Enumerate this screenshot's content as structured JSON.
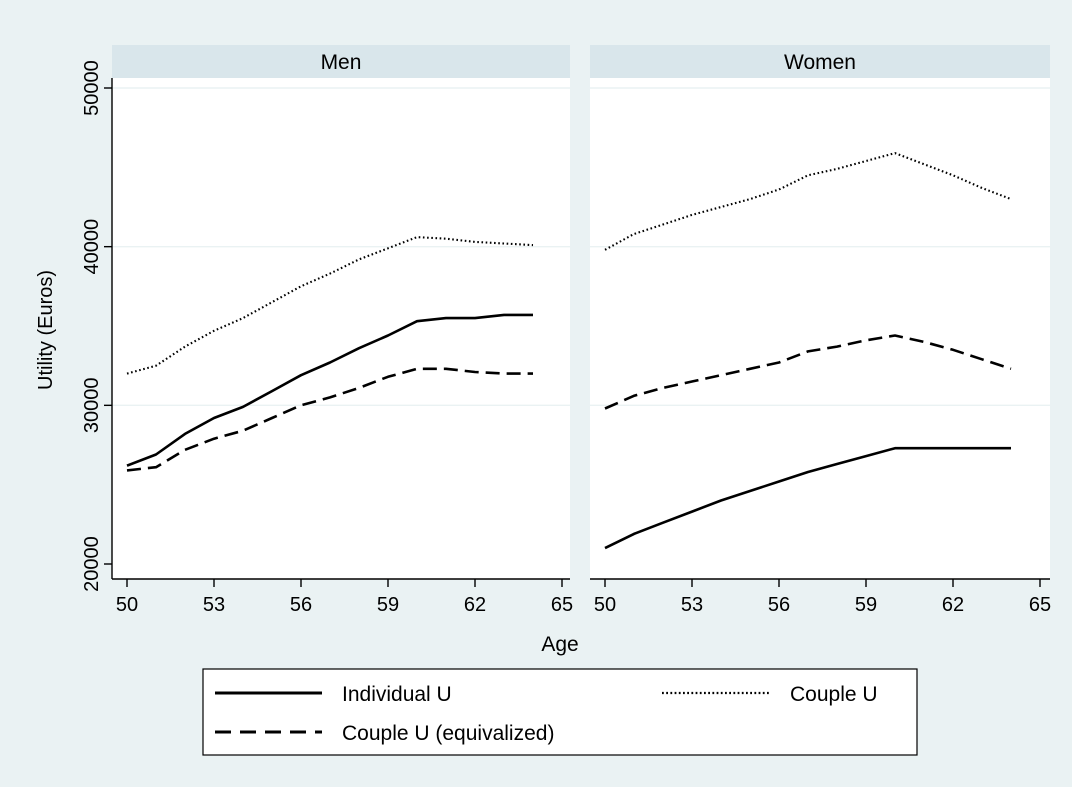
{
  "colors": {
    "outer_background": "#eaf2f3",
    "panel_header": "#d9e6eb",
    "plot_background": "#ffffff",
    "gridline": "#eaf2f3",
    "series_color": "#000000"
  },
  "chart_data": {
    "type": "line",
    "xlabel": "Age",
    "ylabel": "Utility (Euros)",
    "xlim": [
      50,
      65
    ],
    "ylim": [
      20000,
      50000
    ],
    "xticks": [
      "50",
      "53",
      "56",
      "59",
      "62",
      "65"
    ],
    "yticks": [
      "20000",
      "30000",
      "40000",
      "50000"
    ],
    "grid": true,
    "legend_position": "bottom",
    "legend": [
      {
        "label": "Individual U",
        "style": "solid"
      },
      {
        "label": "Couple U",
        "style": "dotted"
      },
      {
        "label": "Couple U (equivalized)",
        "style": "dashed"
      }
    ],
    "panels": [
      {
        "title": "Men",
        "series": [
          {
            "name": "Individual U",
            "style": "solid",
            "points": [
              [
                50,
                26200
              ],
              [
                51,
                26900
              ],
              [
                52,
                28200
              ],
              [
                53,
                29200
              ],
              [
                54,
                29900
              ],
              [
                55,
                30900
              ],
              [
                56,
                31900
              ],
              [
                57,
                32700
              ],
              [
                58,
                33600
              ],
              [
                59,
                34400
              ],
              [
                60,
                35300
              ],
              [
                61,
                35500
              ],
              [
                62,
                35500
              ],
              [
                63,
                35700
              ],
              [
                64,
                35700
              ]
            ]
          },
          {
            "name": "Couple U",
            "style": "dotted",
            "points": [
              [
                50,
                32000
              ],
              [
                51,
                32500
              ],
              [
                52,
                33700
              ],
              [
                53,
                34700
              ],
              [
                54,
                35500
              ],
              [
                55,
                36500
              ],
              [
                56,
                37500
              ],
              [
                57,
                38300
              ],
              [
                58,
                39200
              ],
              [
                59,
                39900
              ],
              [
                60,
                40600
              ],
              [
                61,
                40500
              ],
              [
                62,
                40300
              ],
              [
                63,
                40200
              ],
              [
                64,
                40100
              ]
            ]
          },
          {
            "name": "Couple U (equivalized)",
            "style": "dashed",
            "points": [
              [
                50,
                25900
              ],
              [
                51,
                26100
              ],
              [
                52,
                27200
              ],
              [
                53,
                27900
              ],
              [
                54,
                28400
              ],
              [
                55,
                29200
              ],
              [
                56,
                30000
              ],
              [
                57,
                30500
              ],
              [
                58,
                31100
              ],
              [
                59,
                31800
              ],
              [
                60,
                32300
              ],
              [
                61,
                32300
              ],
              [
                62,
                32100
              ],
              [
                63,
                32000
              ],
              [
                64,
                32000
              ]
            ]
          }
        ]
      },
      {
        "title": "Women",
        "series": [
          {
            "name": "Individual U",
            "style": "solid",
            "points": [
              [
                50,
                21000
              ],
              [
                51,
                21900
              ],
              [
                52,
                22600
              ],
              [
                53,
                23300
              ],
              [
                54,
                24000
              ],
              [
                55,
                24600
              ],
              [
                56,
                25200
              ],
              [
                57,
                25800
              ],
              [
                58,
                26300
              ],
              [
                59,
                26800
              ],
              [
                60,
                27300
              ],
              [
                61,
                27300
              ],
              [
                62,
                27300
              ],
              [
                63,
                27300
              ],
              [
                64,
                27300
              ]
            ]
          },
          {
            "name": "Couple U",
            "style": "dotted",
            "points": [
              [
                50,
                39800
              ],
              [
                51,
                40800
              ],
              [
                52,
                41400
              ],
              [
                53,
                42000
              ],
              [
                54,
                42500
              ],
              [
                55,
                43000
              ],
              [
                56,
                43600
              ],
              [
                57,
                44500
              ],
              [
                58,
                44900
              ],
              [
                59,
                45400
              ],
              [
                60,
                45900
              ],
              [
                61,
                45200
              ],
              [
                62,
                44500
              ],
              [
                63,
                43700
              ],
              [
                64,
                43000
              ]
            ]
          },
          {
            "name": "Couple U (equivalized)",
            "style": "dashed",
            "points": [
              [
                50,
                29800
              ],
              [
                51,
                30600
              ],
              [
                52,
                31100
              ],
              [
                53,
                31500
              ],
              [
                54,
                31900
              ],
              [
                55,
                32300
              ],
              [
                56,
                32700
              ],
              [
                57,
                33400
              ],
              [
                58,
                33700
              ],
              [
                59,
                34100
              ],
              [
                60,
                34400
              ],
              [
                61,
                34000
              ],
              [
                62,
                33500
              ],
              [
                63,
                32900
              ],
              [
                64,
                32300
              ]
            ]
          }
        ]
      }
    ]
  }
}
